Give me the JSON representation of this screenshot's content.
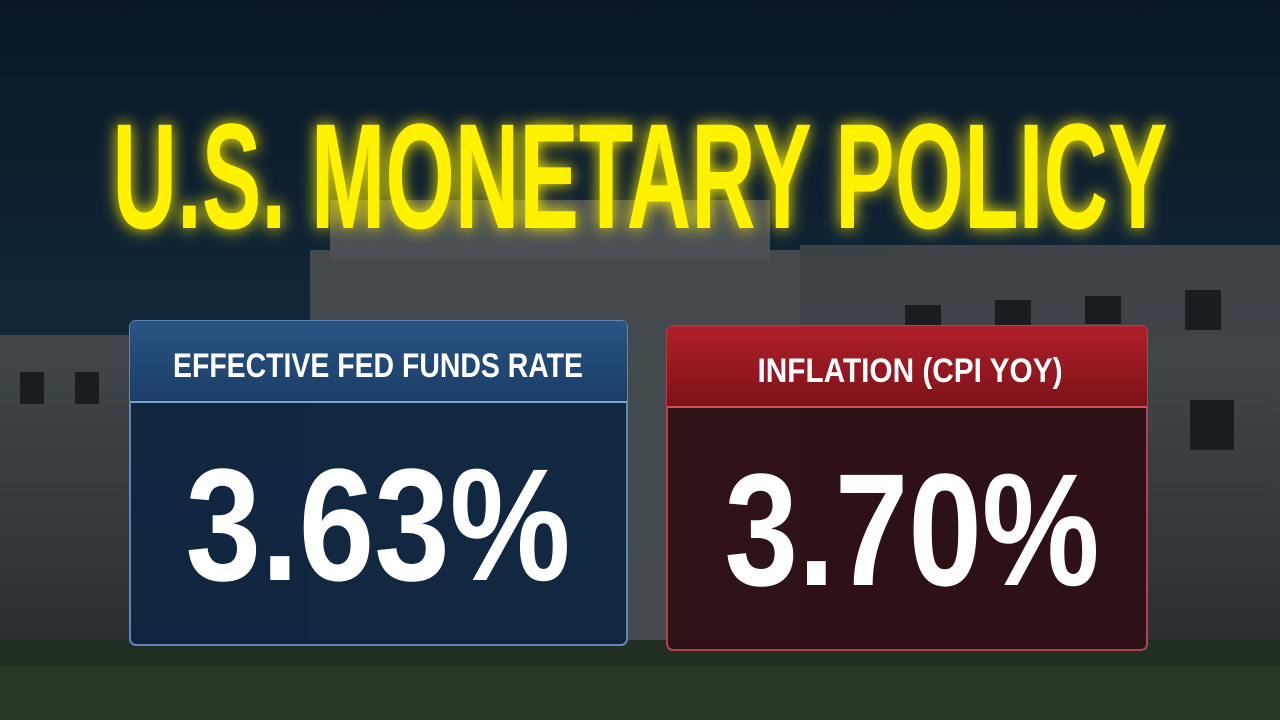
{
  "title": "U.S. MONETARY POLICY",
  "cards": [
    {
      "label": "EFFECTIVE FED FUNDS RATE",
      "value": "3.63%"
    },
    {
      "label": "INFLATION (CPI YOY)",
      "value": "3.70%"
    }
  ]
}
